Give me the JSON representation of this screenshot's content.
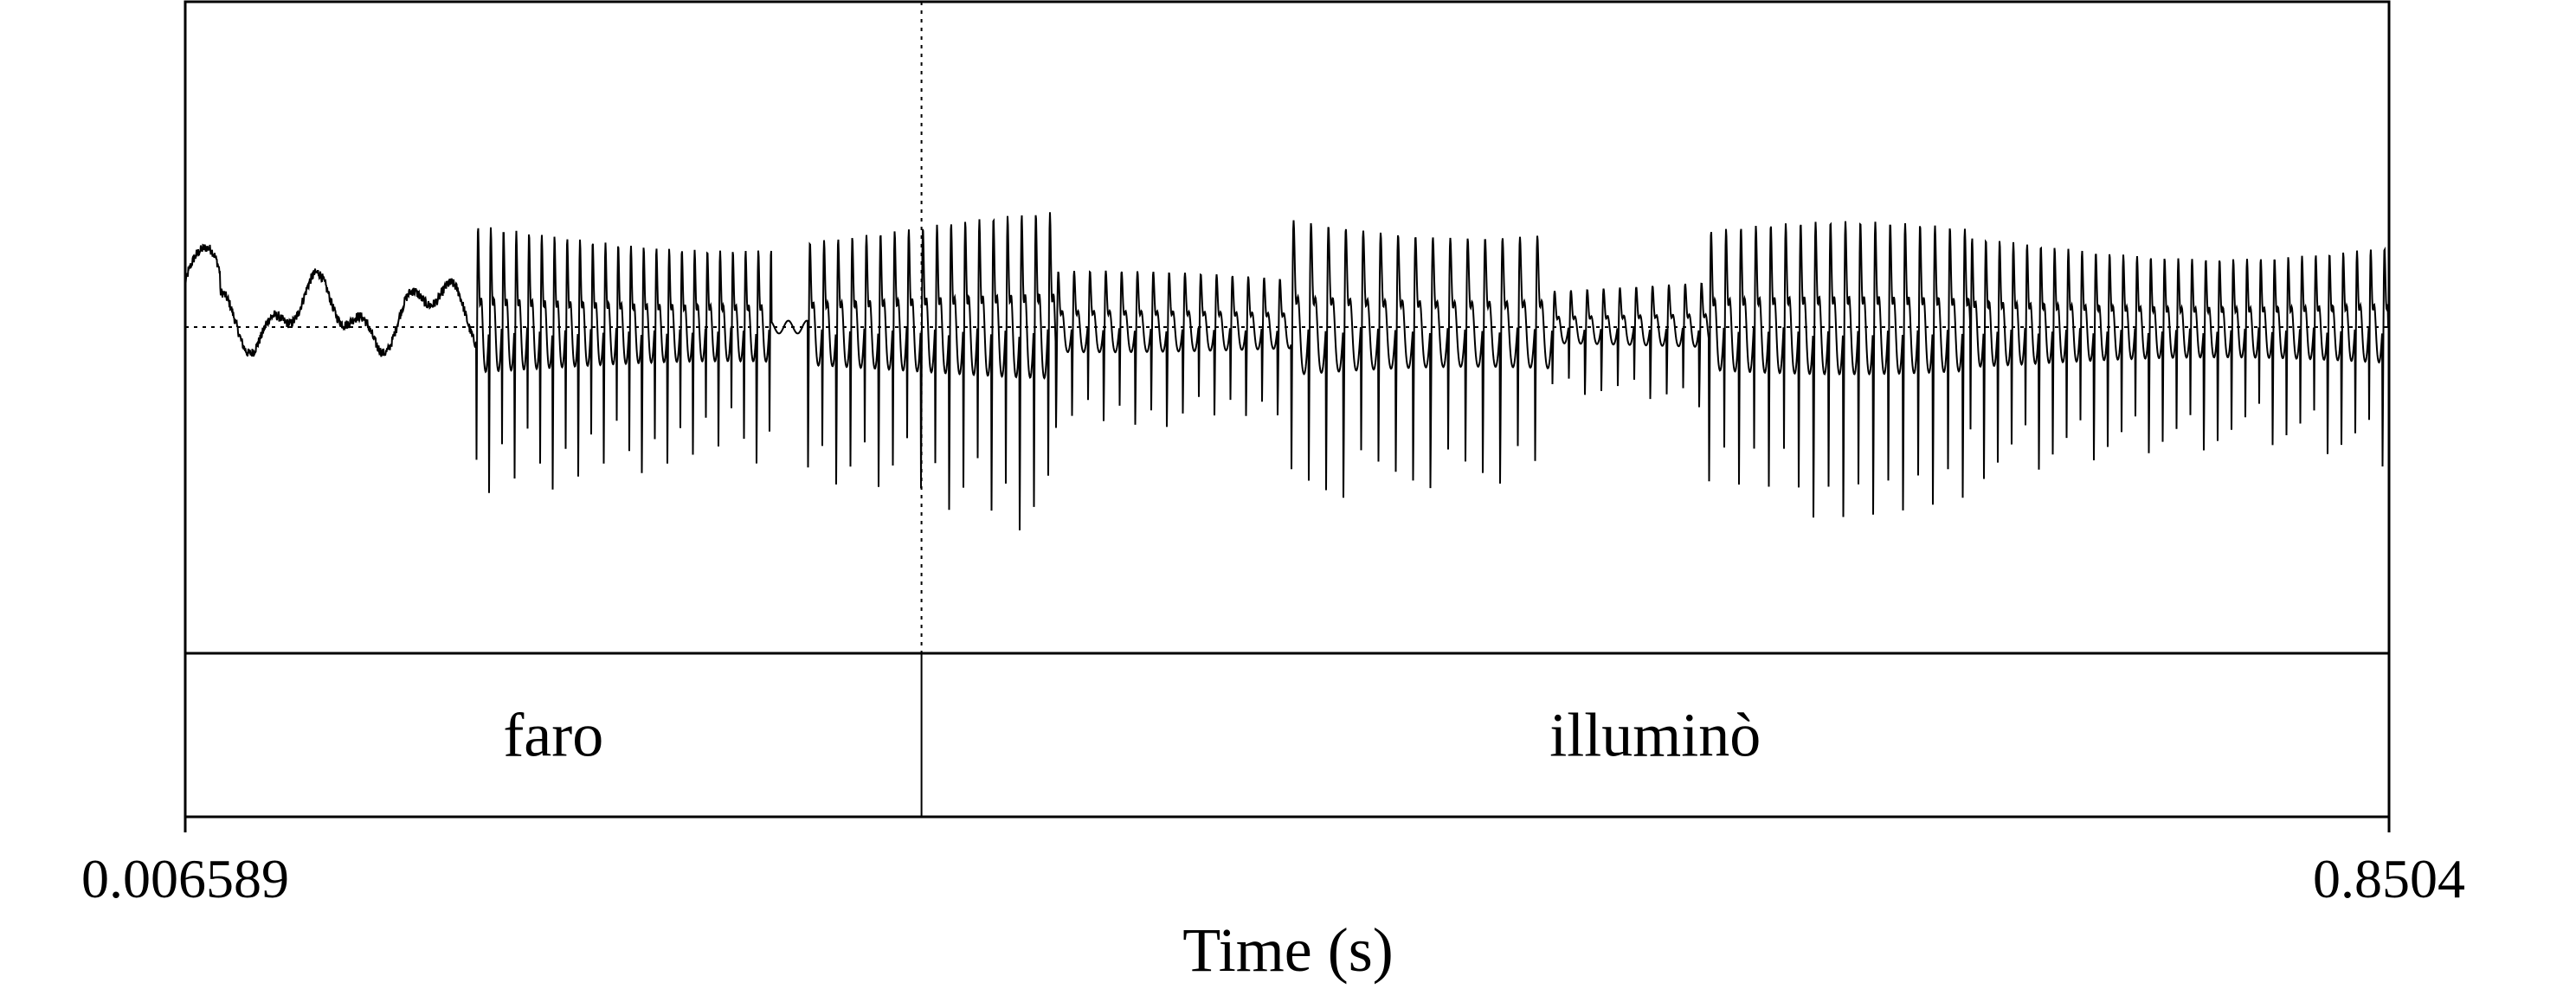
{
  "chart_data": {
    "type": "waveform",
    "x_range": [
      0.006589,
      0.8504
    ],
    "xlabel": "Time (s)",
    "x_tick_labels": [
      "0.006589",
      "0.8504"
    ],
    "cursor_time": 0.2885,
    "tiers": [
      {
        "intervals": [
          {
            "start": 0.006589,
            "end": 0.2885,
            "text": "faro"
          },
          {
            "start": 0.2885,
            "end": 0.8504,
            "text": "illuminò"
          }
        ]
      }
    ],
    "waveform_segments": [
      {
        "start": 0.006589,
        "end": 0.118,
        "kind": "noise"
      },
      {
        "start": 0.118,
        "end": 0.231,
        "kind": "voiced",
        "f0": 205,
        "amplitude": 0.62
      },
      {
        "start": 0.231,
        "end": 0.245,
        "kind": "silence"
      },
      {
        "start": 0.245,
        "end": 0.34,
        "kind": "voiced",
        "f0": 185,
        "amplitude": 0.66
      },
      {
        "start": 0.34,
        "end": 0.43,
        "kind": "voiced",
        "f0": 165,
        "amplitude": 0.32
      },
      {
        "start": 0.43,
        "end": 0.53,
        "kind": "voiced",
        "f0": 150,
        "amplitude": 0.72
      },
      {
        "start": 0.53,
        "end": 0.59,
        "kind": "voiced",
        "f0": 160,
        "amplitude": 0.28
      },
      {
        "start": 0.59,
        "end": 0.69,
        "kind": "voiced",
        "f0": 175,
        "amplitude": 0.6
      },
      {
        "start": 0.69,
        "end": 0.85,
        "kind": "voiced",
        "f0": 190,
        "amplitude": 0.55
      }
    ],
    "colors": {
      "line": "#000000",
      "background": "#ffffff"
    }
  }
}
